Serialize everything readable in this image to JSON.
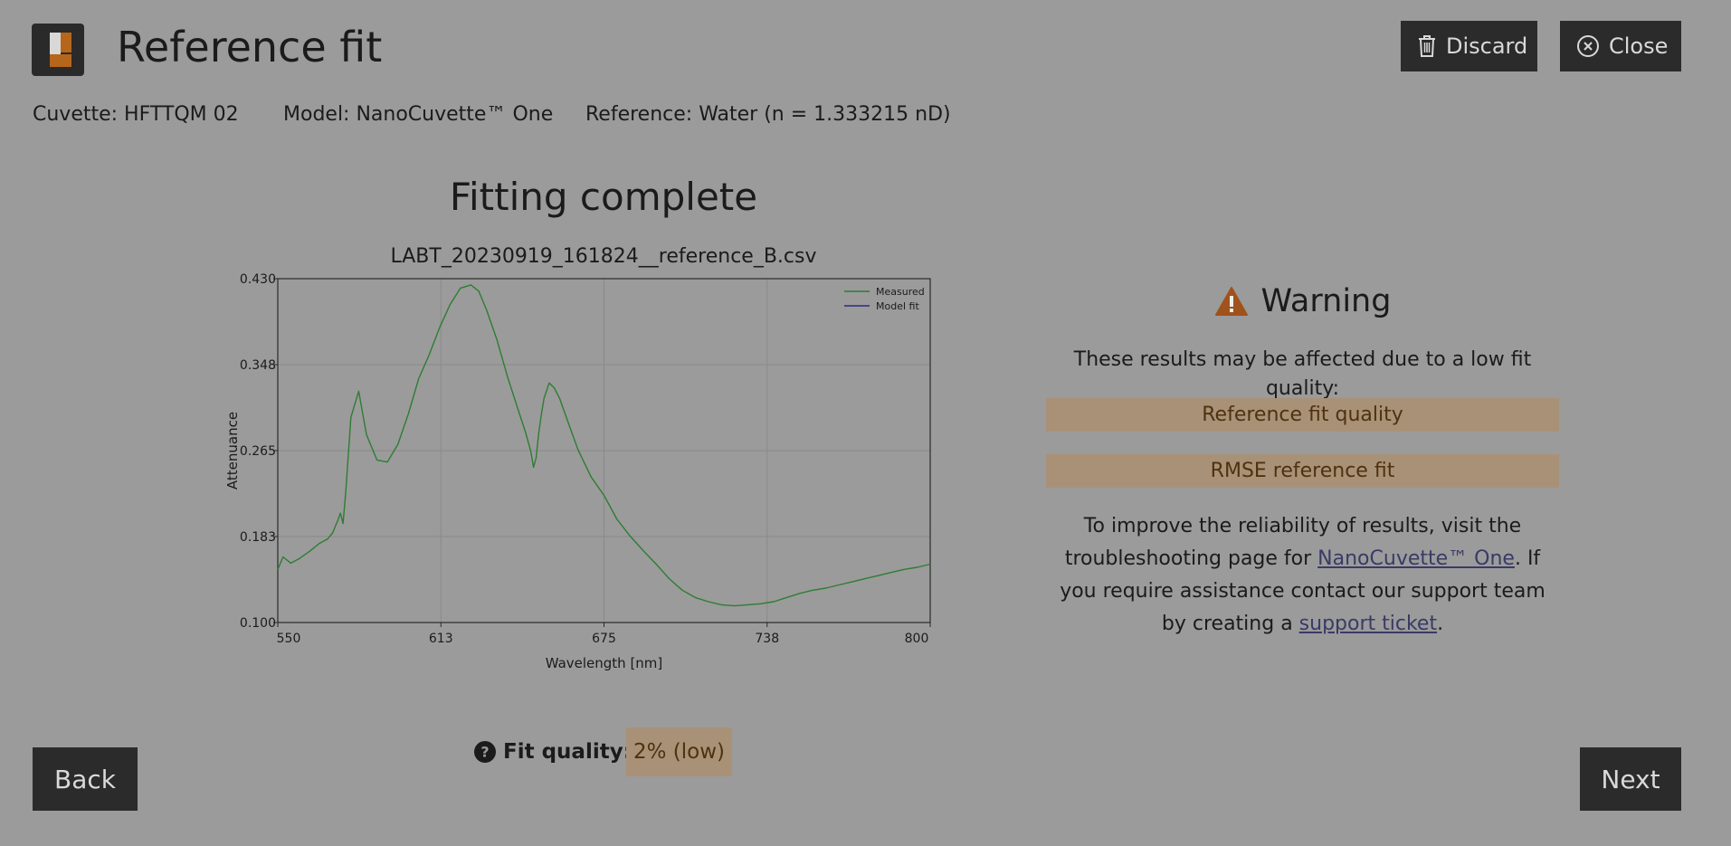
{
  "header": {
    "title": "Reference fit",
    "discard_label": "Discard",
    "close_label": "Close"
  },
  "info": {
    "cuvette": "Cuvette: HFTTQM 02",
    "model": "Model: NanoCuvette™ One",
    "reference": "Reference: Water (n = 1.333215 nD)"
  },
  "main": {
    "heading": "Fitting complete"
  },
  "chart_data": {
    "type": "line",
    "title": "LABT_20230919_161824__reference_B.csv",
    "xlabel": "Wavelength [nm]",
    "ylabel": "Attenuance",
    "xlim": [
      550,
      800
    ],
    "ylim": [
      0.1,
      0.43
    ],
    "x_ticks": [
      "550",
      "613",
      "675",
      "738",
      "800"
    ],
    "y_ticks": [
      "0.100",
      "0.183",
      "0.265",
      "0.348",
      "0.430"
    ],
    "x_tick_values": [
      550,
      612.5,
      675,
      737.5,
      800
    ],
    "y_tick_values": [
      0.1,
      0.1825,
      0.265,
      0.3475,
      0.43
    ],
    "grid": true,
    "legend_position": "top-right",
    "series": [
      {
        "name": "Measured",
        "color": "#2e7d32",
        "x": [
          550,
          552,
          555,
          558,
          562,
          566,
          569,
          571,
          572,
          573,
          574,
          575,
          576,
          578,
          581,
          584,
          588,
          592,
          596,
          600,
          604,
          608,
          612,
          616,
          620,
          624,
          627,
          630,
          634,
          638,
          642,
          645,
          647,
          648,
          649,
          650,
          651,
          652,
          654,
          656,
          658,
          661,
          665,
          670,
          675,
          680,
          685,
          690,
          695,
          700,
          705,
          710,
          715,
          720,
          725,
          730,
          735,
          740,
          745,
          750,
          755,
          760,
          765,
          770,
          775,
          780,
          785,
          790,
          795,
          800
        ],
        "y": [
          0.151,
          0.163,
          0.157,
          0.161,
          0.168,
          0.176,
          0.18,
          0.186,
          0.192,
          0.198,
          0.205,
          0.195,
          0.224,
          0.297,
          0.322,
          0.28,
          0.256,
          0.254,
          0.271,
          0.3,
          0.334,
          0.357,
          0.383,
          0.405,
          0.421,
          0.424,
          0.418,
          0.4,
          0.371,
          0.336,
          0.305,
          0.282,
          0.264,
          0.249,
          0.258,
          0.282,
          0.3,
          0.315,
          0.33,
          0.325,
          0.315,
          0.294,
          0.266,
          0.24,
          0.222,
          0.199,
          0.183,
          0.169,
          0.156,
          0.142,
          0.131,
          0.124,
          0.12,
          0.117,
          0.116,
          0.117,
          0.118,
          0.12,
          0.124,
          0.128,
          0.131,
          0.133,
          0.136,
          0.139,
          0.142,
          0.145,
          0.148,
          0.151,
          0.153,
          0.156
        ]
      },
      {
        "name": "Model fit",
        "color": "#2a2a80",
        "x": [],
        "y": []
      }
    ]
  },
  "warning": {
    "title": "Warning",
    "message": "These results may be affected due to a low fit quality:",
    "issues": [
      "Reference fit quality",
      "RMSE reference fit"
    ],
    "advice_1": "To improve the reliability of results, visit the troubleshooting page for ",
    "advice_link_1": "NanoCuvette™ One",
    "advice_2": ". If you require assistance contact our support team by creating a ",
    "advice_link_2": "support ticket",
    "advice_3": "."
  },
  "footer": {
    "back_label": "Back",
    "next_label": "Next",
    "fit_quality_label": "Fit quality:",
    "fit_quality_value": "2% (low)"
  },
  "colors": {
    "background": "#9b9b9b",
    "button_dark": "#2b2b2b",
    "warning_badge": "#a99177",
    "warning_icon": "#a0521a",
    "logo_accent": "#b5661a",
    "logo_light": "#d8d8d8"
  },
  "icons": {
    "logo": "app-logo-icon",
    "discard": "trash-icon",
    "close": "close-circle-icon",
    "warning": "warning-triangle-icon",
    "help": "help-circle-icon"
  }
}
